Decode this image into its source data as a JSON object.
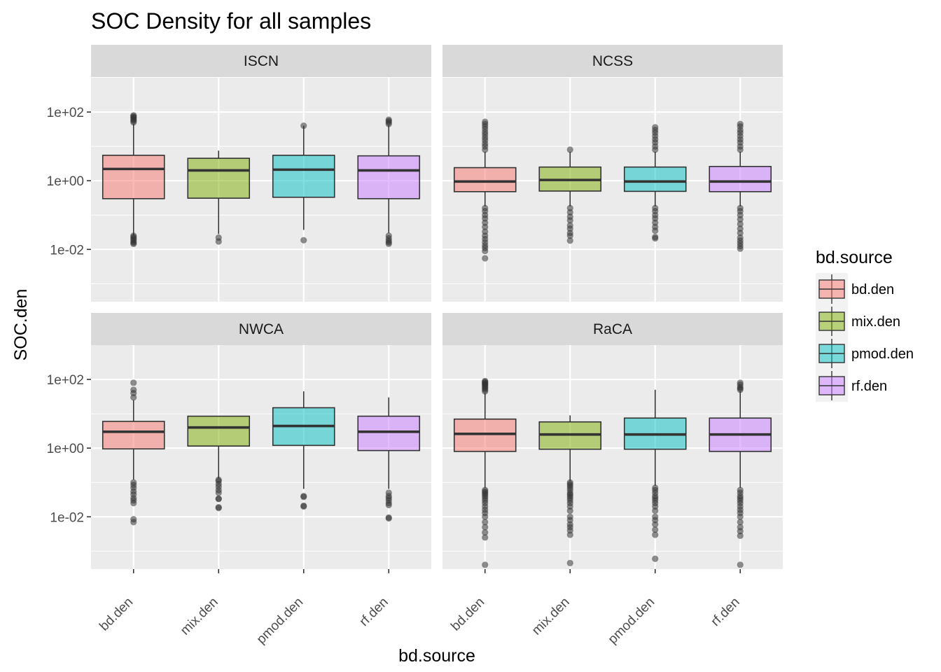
{
  "chart_data": {
    "type": "boxplot",
    "title": "SOC Density for all samples",
    "xlabel": "bd.source",
    "ylabel": "SOC.den",
    "y_scale": "log10",
    "y_ticks": [
      0.01,
      1,
      100
    ],
    "y_tick_labels": [
      "1e-02",
      "1e+00",
      "1e+02"
    ],
    "ylim": [
      0.0003,
      1000
    ],
    "categories": [
      "bd.den",
      "mix.den",
      "pmod.den",
      "rf.den"
    ],
    "legend": {
      "title": "bd.source",
      "position": "right",
      "entries": [
        "bd.den",
        "mix.den",
        "pmod.den",
        "rf.den"
      ]
    },
    "colors": {
      "bd.den": "#F8766D",
      "mix.den": "#7CAE00",
      "pmod.den": "#00BFC4",
      "rf.den": "#C77CFF"
    },
    "grid": true,
    "facets": [
      {
        "name": "ISCN",
        "boxes": [
          {
            "category": "bd.den",
            "q1": 0.3,
            "median": 2.2,
            "q3": 5.5,
            "whisker_low": 0.025,
            "whisker_high": 45,
            "outliers_low": [
              0.0145,
              0.0155,
              0.017,
              0.019,
              0.021,
              0.023,
              0.025
            ],
            "outliers_high": [
              50,
              55,
              60,
              65,
              70,
              75,
              80
            ]
          },
          {
            "category": "mix.den",
            "q1": 0.31,
            "median": 2.0,
            "q3": 4.5,
            "whisker_low": 0.028,
            "whisker_high": 7.5,
            "outliers_low": [
              0.017,
              0.022
            ],
            "outliers_high": []
          },
          {
            "category": "pmod.den",
            "q1": 0.33,
            "median": 2.1,
            "q3": 5.5,
            "whisker_low": 0.037,
            "whisker_high": 40,
            "outliers_low": [
              0.0185
            ],
            "outliers_high": [
              40
            ]
          },
          {
            "category": "rf.den",
            "q1": 0.3,
            "median": 2.0,
            "q3": 5.3,
            "whisker_low": 0.03,
            "whisker_high": 42,
            "outliers_low": [
              0.0145,
              0.016,
              0.018,
              0.021,
              0.025
            ],
            "outliers_high": [
              45,
              50,
              55,
              60
            ]
          }
        ]
      },
      {
        "name": "NCSS",
        "boxes": [
          {
            "category": "bd.den",
            "q1": 0.48,
            "median": 0.95,
            "q3": 2.4,
            "whisker_low": 0.18,
            "whisker_high": 7,
            "outliers_low": [
              0.0055,
              0.009,
              0.011,
              0.013,
              0.016,
              0.02,
              0.025,
              0.033,
              0.045,
              0.06,
              0.08,
              0.1,
              0.13,
              0.16
            ],
            "outliers_high": [
              8,
              10,
              12,
              15,
              18,
              22,
              26,
              32,
              38,
              45,
              52
            ]
          },
          {
            "category": "mix.den",
            "q1": 0.5,
            "median": 1.05,
            "q3": 2.5,
            "whisker_low": 0.18,
            "whisker_high": 7,
            "outliers_low": [
              0.018,
              0.025,
              0.03,
              0.04,
              0.05,
              0.07,
              0.09,
              0.12,
              0.16
            ],
            "outliers_high": [
              8
            ]
          },
          {
            "category": "pmod.den",
            "q1": 0.49,
            "median": 0.95,
            "q3": 2.5,
            "whisker_low": 0.18,
            "whisker_high": 7,
            "outliers_low": [
              0.021,
              0.023,
              0.035,
              0.045,
              0.06,
              0.08,
              0.1,
              0.13,
              0.16
            ],
            "outliers_high": [
              8,
              10,
              13,
              16,
              20,
              25,
              30,
              36
            ]
          },
          {
            "category": "rf.den",
            "q1": 0.48,
            "median": 0.95,
            "q3": 2.6,
            "whisker_low": 0.18,
            "whisker_high": 7,
            "outliers_low": [
              0.0105,
              0.0125,
              0.015,
              0.018,
              0.022,
              0.03,
              0.04,
              0.055,
              0.075,
              0.1,
              0.13,
              0.16
            ],
            "outliers_high": [
              8,
              10,
              13,
              16,
              20,
              25,
              30,
              38,
              45
            ]
          }
        ]
      },
      {
        "name": "NWCA",
        "boxes": [
          {
            "category": "bd.den",
            "q1": 0.95,
            "median": 3.0,
            "q3": 6.0,
            "whisker_low": 0.12,
            "whisker_high": 25,
            "outliers_low": [
              0.007,
              0.0085,
              0.025,
              0.03,
              0.035,
              0.045,
              0.055,
              0.07,
              0.085,
              0.1
            ],
            "outliers_high": [
              30,
              40,
              50,
              80
            ]
          },
          {
            "category": "mix.den",
            "q1": 1.15,
            "median": 4.0,
            "q3": 8.5,
            "whisker_low": 0.13,
            "whisker_high": 8.5,
            "outliers_low": [
              0.018,
              0.019,
              0.033,
              0.034,
              0.05,
              0.06,
              0.075,
              0.09,
              0.11,
              0.12
            ],
            "outliers_high": []
          },
          {
            "category": "pmod.den",
            "q1": 1.2,
            "median": 4.4,
            "q3": 15,
            "whisker_low": 0.065,
            "whisker_high": 45,
            "outliers_low": [
              0.02,
              0.021,
              0.038,
              0.04
            ],
            "outliers_high": []
          },
          {
            "category": "rf.den",
            "q1": 0.85,
            "median": 3.0,
            "q3": 8.5,
            "whisker_low": 0.065,
            "whisker_high": 30,
            "outliers_low": [
              0.009,
              0.0095,
              0.022,
              0.025,
              0.03,
              0.035,
              0.04,
              0.05
            ],
            "outliers_high": []
          }
        ]
      },
      {
        "name": "RaCA",
        "boxes": [
          {
            "category": "bd.den",
            "q1": 0.8,
            "median": 2.6,
            "q3": 7.0,
            "whisker_low": 0.07,
            "whisker_high": 40,
            "outliers_low": [
              0.0004,
              0.0025,
              0.0035,
              0.005,
              0.007,
              0.01,
              0.013,
              0.016,
              0.02,
              0.025,
              0.03,
              0.035,
              0.04,
              0.045,
              0.05,
              0.055,
              0.06
            ],
            "outliers_high": [
              45,
              50,
              55,
              60,
              65,
              70,
              75,
              80,
              85,
              90
            ]
          },
          {
            "category": "mix.den",
            "q1": 0.93,
            "median": 2.5,
            "q3": 5.8,
            "whisker_low": 0.11,
            "whisker_high": 9,
            "outliers_low": [
              0.00045,
              0.003,
              0.004,
              0.005,
              0.006,
              0.008,
              0.01,
              0.015,
              0.02,
              0.025,
              0.03,
              0.035,
              0.04,
              0.045,
              0.05,
              0.06,
              0.07,
              0.08,
              0.09,
              0.1
            ],
            "outliers_high": []
          },
          {
            "category": "pmod.den",
            "q1": 0.93,
            "median": 2.5,
            "q3": 7.5,
            "whisker_low": 0.08,
            "whisker_high": 50,
            "outliers_low": [
              0.0006,
              0.003,
              0.0042,
              0.006,
              0.008,
              0.01,
              0.015,
              0.02,
              0.025,
              0.03,
              0.035,
              0.04,
              0.05,
              0.06,
              0.07
            ],
            "outliers_high": []
          },
          {
            "category": "rf.den",
            "q1": 0.8,
            "median": 2.5,
            "q3": 7.5,
            "whisker_low": 0.07,
            "whisker_high": 45,
            "outliers_low": [
              0.0004,
              0.0028,
              0.0038,
              0.005,
              0.007,
              0.01,
              0.013,
              0.016,
              0.02,
              0.025,
              0.03,
              0.035,
              0.04,
              0.05,
              0.06
            ],
            "outliers_high": [
              50,
              55,
              60,
              70,
              80
            ]
          }
        ]
      }
    ]
  }
}
